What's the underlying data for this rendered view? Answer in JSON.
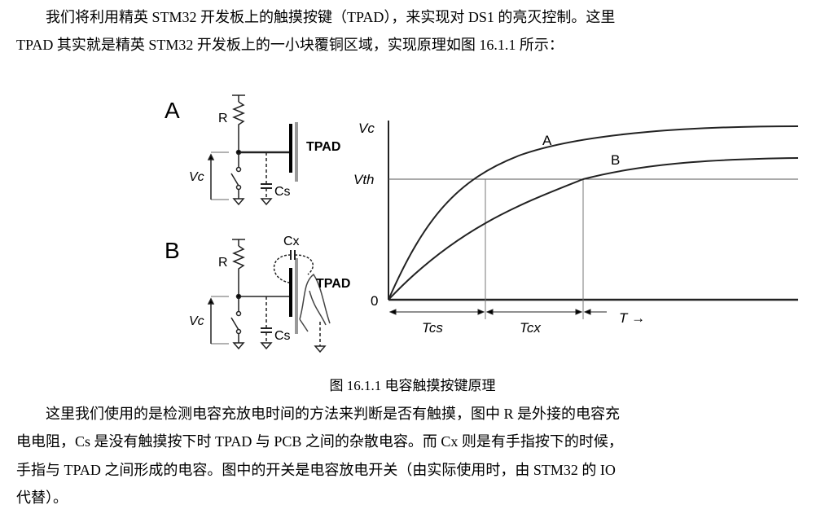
{
  "paragraph1": [
    "我们将利用精英 STM32 开发板上的触摸按键（TPAD），来实现对 DS1 的亮灭控制。这里",
    "TPAD 其实就是精英 STM32 开发板上的一小块覆铜区域，实现原理如图 16.1.1 所示："
  ],
  "figure": {
    "circuit_a": {
      "label": "A",
      "r": "R",
      "vc": "Vc",
      "tpad": "TPAD",
      "cs": "Cs"
    },
    "circuit_b": {
      "label": "B",
      "r": "R",
      "vc": "Vc",
      "tpad": "TPAD",
      "cs": "Cs",
      "cx": "Cx"
    },
    "graph": {
      "y_label": "Vc",
      "vth": "Vth",
      "zero": "0",
      "curve_a": "A",
      "curve_b": "B",
      "tcs": "Tcs",
      "tcx": "Tcx",
      "t_axis": "T →"
    },
    "caption": "图 16.1.1  电容触摸按键原理"
  },
  "paragraph2": [
    "这里我们使用的是检测电容充放电时间的方法来判断是否有触摸，图中 R 是外接的电容充",
    "电电阻，Cs 是没有触摸按下时 TPAD 与 PCB 之间的杂散电容。而 Cx 则是有手指按下的时候，",
    "手指与 TPAD 之间形成的电容。图中的开关是电容放电开关（由实际使用时，由 STM32 的 IO",
    "代替）。"
  ]
}
